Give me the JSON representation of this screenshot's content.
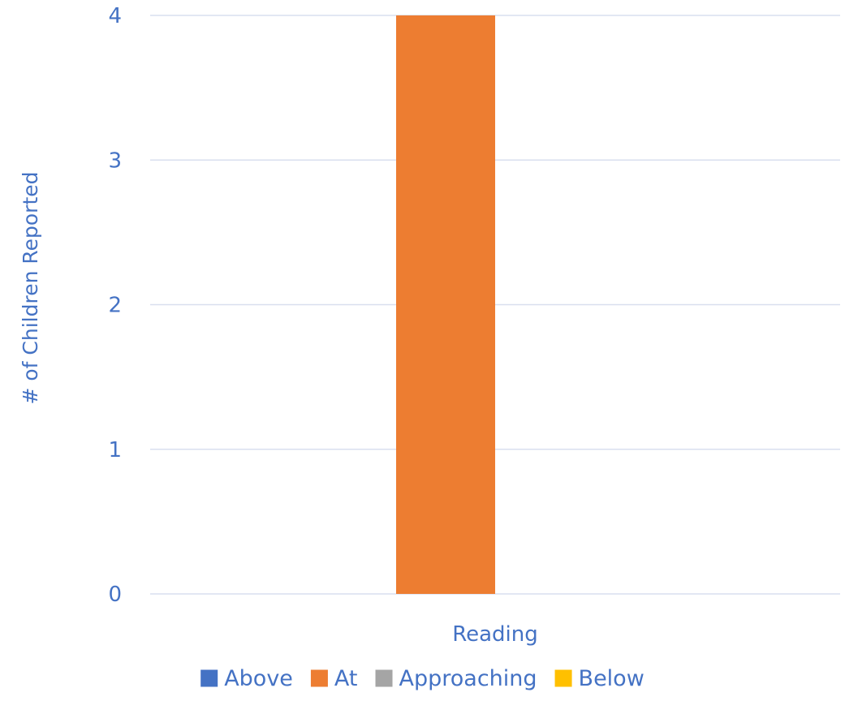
{
  "chart_data": {
    "type": "bar",
    "categories": [
      "Reading"
    ],
    "series": [
      {
        "name": "Above",
        "color": "#4472C4",
        "values": [
          0
        ]
      },
      {
        "name": "At",
        "color": "#ED7D31",
        "values": [
          4
        ]
      },
      {
        "name": "Approaching",
        "color": "#A5A5A5",
        "values": [
          0
        ]
      },
      {
        "name": "Below",
        "color": "#FFC000",
        "values": [
          0
        ]
      }
    ],
    "yticks": [
      "0",
      "1",
      "2",
      "3",
      "4"
    ],
    "ylim": [
      0,
      4
    ],
    "ylabel": "# of Children Reported",
    "xlabel": "",
    "title": "",
    "grid": true,
    "legend_position": "bottom"
  }
}
